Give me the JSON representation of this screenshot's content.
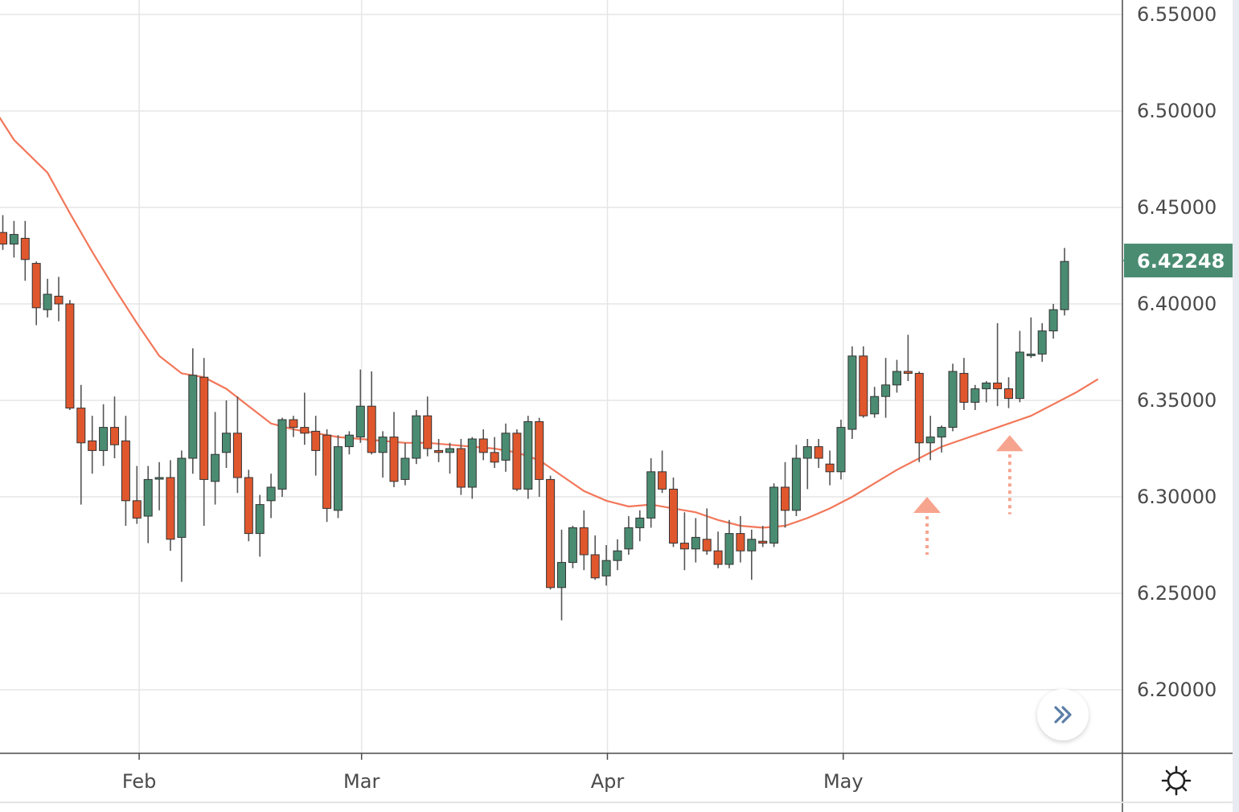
{
  "colors": {
    "up": "#4a8c72",
    "down": "#e0572e",
    "wick": "#555555",
    "ma": "#f2775a",
    "grid": "#e6e6e6",
    "axis": "#4a4a4a",
    "price_tag": "#4a8c72",
    "arrow": "#f7a48e"
  },
  "chart_data": {
    "type": "candlestick",
    "y_range": [
      6.165,
      6.555
    ],
    "y_ticks": [
      "6.55000",
      "6.50000",
      "6.45000",
      "6.40000",
      "6.35000",
      "6.30000",
      "6.25000",
      "6.20000"
    ],
    "y_tick_values": [
      6.55,
      6.5,
      6.45,
      6.4,
      6.35,
      6.3,
      6.25,
      6.2
    ],
    "x_ticks": [
      {
        "label": "Feb",
        "index": 12.2
      },
      {
        "label": "Mar",
        "index": 32.1
      },
      {
        "label": "Apr",
        "index": 54.1
      },
      {
        "label": "May",
        "index": 75.2
      }
    ],
    "last_price": "6.42248",
    "last_price_value": 6.42248,
    "grid": true,
    "candles": [
      [
        6.437,
        6.446,
        6.428,
        6.431
      ],
      [
        6.431,
        6.443,
        6.424,
        6.436
      ],
      [
        6.434,
        6.443,
        6.412,
        6.423
      ],
      [
        6.421,
        6.422,
        6.389,
        6.398
      ],
      [
        6.397,
        6.413,
        6.393,
        6.405
      ],
      [
        6.404,
        6.414,
        6.391,
        6.4
      ],
      [
        6.4,
        6.402,
        6.345,
        6.346
      ],
      [
        6.346,
        6.358,
        6.296,
        6.328
      ],
      [
        6.329,
        6.342,
        6.312,
        6.324
      ],
      [
        6.324,
        6.348,
        6.316,
        6.336
      ],
      [
        6.336,
        6.352,
        6.32,
        6.327
      ],
      [
        6.329,
        6.342,
        6.285,
        6.298
      ],
      [
        6.298,
        6.316,
        6.286,
        6.289
      ],
      [
        6.29,
        6.316,
        6.276,
        6.309
      ],
      [
        6.31,
        6.318,
        6.293,
        6.31
      ],
      [
        6.31,
        6.319,
        6.272,
        6.278
      ],
      [
        6.279,
        6.324,
        6.256,
        6.32
      ],
      [
        6.32,
        6.377,
        6.312,
        6.363
      ],
      [
        6.362,
        6.372,
        6.285,
        6.309
      ],
      [
        6.308,
        6.344,
        6.296,
        6.322
      ],
      [
        6.323,
        6.35,
        6.315,
        6.333
      ],
      [
        6.333,
        6.352,
        6.302,
        6.31
      ],
      [
        6.31,
        6.314,
        6.277,
        6.281
      ],
      [
        6.281,
        6.301,
        6.269,
        6.296
      ],
      [
        6.298,
        6.312,
        6.289,
        6.305
      ],
      [
        6.304,
        6.341,
        6.3,
        6.34
      ],
      [
        6.34,
        6.342,
        6.331,
        6.336
      ],
      [
        6.336,
        6.354,
        6.327,
        6.333
      ],
      [
        6.334,
        6.342,
        6.311,
        6.324
      ],
      [
        6.332,
        6.335,
        6.287,
        6.294
      ],
      [
        6.293,
        6.332,
        6.289,
        6.326
      ],
      [
        6.326,
        6.334,
        6.322,
        6.332
      ],
      [
        6.331,
        6.366,
        6.328,
        6.347
      ],
      [
        6.347,
        6.365,
        6.322,
        6.323
      ],
      [
        6.323,
        6.334,
        6.31,
        6.331
      ],
      [
        6.331,
        6.344,
        6.305,
        6.308
      ],
      [
        6.309,
        6.328,
        6.306,
        6.32
      ],
      [
        6.32,
        6.345,
        6.317,
        6.342
      ],
      [
        6.342,
        6.352,
        6.321,
        6.325
      ],
      [
        6.324,
        6.33,
        6.318,
        6.323
      ],
      [
        6.323,
        6.328,
        6.312,
        6.325
      ],
      [
        6.325,
        6.33,
        6.301,
        6.305
      ],
      [
        6.305,
        6.331,
        6.299,
        6.33
      ],
      [
        6.33,
        6.335,
        6.319,
        6.323
      ],
      [
        6.323,
        6.331,
        6.315,
        6.318
      ],
      [
        6.319,
        6.338,
        6.313,
        6.333
      ],
      [
        6.333,
        6.335,
        6.303,
        6.304
      ],
      [
        6.304,
        6.342,
        6.299,
        6.339
      ],
      [
        6.339,
        6.341,
        6.3,
        6.309
      ],
      [
        6.309,
        6.311,
        6.252,
        6.253
      ],
      [
        6.253,
        6.283,
        6.236,
        6.266
      ],
      [
        6.266,
        6.285,
        6.263,
        6.284
      ],
      [
        6.284,
        6.293,
        6.262,
        6.27
      ],
      [
        6.27,
        6.28,
        6.257,
        6.258
      ],
      [
        6.259,
        6.275,
        6.254,
        6.267
      ],
      [
        6.267,
        6.278,
        6.262,
        6.272
      ],
      [
        6.273,
        6.29,
        6.27,
        6.284
      ],
      [
        6.284,
        6.293,
        6.277,
        6.289
      ],
      [
        6.289,
        6.32,
        6.284,
        6.313
      ],
      [
        6.313,
        6.324,
        6.302,
        6.304
      ],
      [
        6.304,
        6.31,
        6.274,
        6.276
      ],
      [
        6.276,
        6.292,
        6.262,
        6.273
      ],
      [
        6.273,
        6.289,
        6.266,
        6.279
      ],
      [
        6.278,
        6.294,
        6.27,
        6.272
      ],
      [
        6.272,
        6.282,
        6.263,
        6.265
      ],
      [
        6.265,
        6.288,
        6.263,
        6.281
      ],
      [
        6.281,
        6.29,
        6.266,
        6.272
      ],
      [
        6.272,
        6.283,
        6.257,
        6.278
      ],
      [
        6.277,
        6.285,
        6.274,
        6.276
      ],
      [
        6.276,
        6.307,
        6.274,
        6.305
      ],
      [
        6.305,
        6.318,
        6.284,
        6.293
      ],
      [
        6.293,
        6.327,
        6.29,
        6.32
      ],
      [
        6.32,
        6.33,
        6.304,
        6.326
      ],
      [
        6.326,
        6.33,
        6.315,
        6.32
      ],
      [
        6.317,
        6.324,
        6.306,
        6.313
      ],
      [
        6.313,
        6.34,
        6.309,
        6.336
      ],
      [
        6.335,
        6.378,
        6.33,
        6.373
      ],
      [
        6.373,
        6.378,
        6.341,
        6.342
      ],
      [
        6.343,
        6.357,
        6.341,
        6.352
      ],
      [
        6.352,
        6.372,
        6.341,
        6.358
      ],
      [
        6.358,
        6.371,
        6.354,
        6.365
      ],
      [
        6.365,
        6.384,
        6.36,
        6.364
      ],
      [
        6.364,
        6.365,
        6.318,
        6.328
      ],
      [
        6.328,
        6.342,
        6.319,
        6.331
      ],
      [
        6.331,
        6.337,
        6.323,
        6.336
      ],
      [
        6.336,
        6.369,
        6.334,
        6.365
      ],
      [
        6.364,
        6.372,
        6.345,
        6.349
      ],
      [
        6.349,
        6.358,
        6.345,
        6.356
      ],
      [
        6.356,
        6.36,
        6.349,
        6.359
      ],
      [
        6.359,
        6.39,
        6.347,
        6.356
      ],
      [
        6.356,
        6.362,
        6.346,
        6.351
      ],
      [
        6.351,
        6.386,
        6.349,
        6.375
      ],
      [
        6.374,
        6.393,
        6.372,
        6.374
      ],
      [
        6.374,
        6.39,
        6.37,
        6.386
      ],
      [
        6.386,
        6.4,
        6.382,
        6.397
      ],
      [
        6.397,
        6.429,
        6.394,
        6.422
      ]
    ],
    "ma": [
      [
        -2,
        6.512
      ],
      [
        1,
        6.485
      ],
      [
        4,
        6.468
      ],
      [
        6,
        6.447
      ],
      [
        8,
        6.427
      ],
      [
        10,
        6.408
      ],
      [
        12,
        6.39
      ],
      [
        14,
        6.373
      ],
      [
        16,
        6.364
      ],
      [
        18,
        6.362
      ],
      [
        20,
        6.356
      ],
      [
        22,
        6.347
      ],
      [
        24,
        6.338
      ],
      [
        26,
        6.335
      ],
      [
        28,
        6.333
      ],
      [
        30,
        6.331
      ],
      [
        32,
        6.33
      ],
      [
        34,
        6.329
      ],
      [
        36,
        6.328
      ],
      [
        38,
        6.328
      ],
      [
        40,
        6.327
      ],
      [
        42,
        6.326
      ],
      [
        44,
        6.325
      ],
      [
        46,
        6.323
      ],
      [
        48,
        6.319
      ],
      [
        50,
        6.311
      ],
      [
        52,
        6.303
      ],
      [
        54,
        6.298
      ],
      [
        56,
        6.295
      ],
      [
        58,
        6.296
      ],
      [
        60,
        6.294
      ],
      [
        62,
        6.292
      ],
      [
        64,
        6.288
      ],
      [
        66,
        6.285
      ],
      [
        68,
        6.284
      ],
      [
        70,
        6.285
      ],
      [
        72,
        6.289
      ],
      [
        74,
        6.294
      ],
      [
        76,
        6.3
      ],
      [
        78,
        6.307
      ],
      [
        80,
        6.314
      ],
      [
        82,
        6.32
      ],
      [
        84,
        6.326
      ],
      [
        86,
        6.33
      ],
      [
        88,
        6.334
      ],
      [
        90,
        6.338
      ],
      [
        92,
        6.342
      ],
      [
        94,
        6.348
      ],
      [
        96,
        6.354
      ],
      [
        98,
        6.361
      ]
    ],
    "annotations": [
      {
        "type": "arrow-up",
        "index": 82.7,
        "tip": 6.3,
        "tail": 6.27
      },
      {
        "type": "arrow-up",
        "index": 90.1,
        "tip": 6.332,
        "tail": 6.291
      }
    ]
  }
}
